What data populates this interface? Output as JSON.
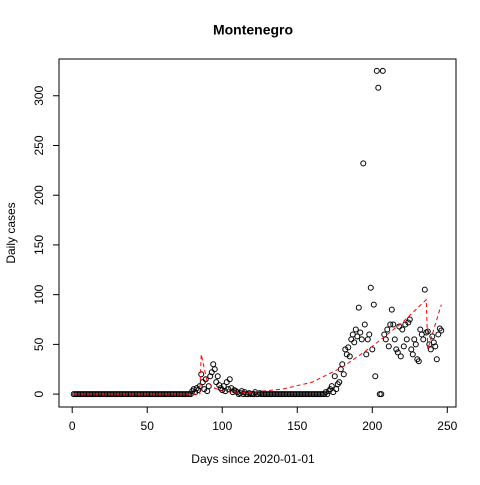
{
  "chart_data": {
    "type": "scatter",
    "title": "Montenegro",
    "x_label": "Days since 2020-01-01",
    "y_label": "Daily cases",
    "xlim": [
      -8.8,
      255.8
    ],
    "ylim": [
      -12.96,
      336.96
    ],
    "xticks": [
      0,
      50,
      100,
      150,
      200,
      250
    ],
    "yticks": [
      0,
      50,
      100,
      150,
      200,
      250,
      300
    ],
    "series": [
      {
        "type": "scatter",
        "color": "#000000",
        "x": [
          1,
          2,
          3,
          4,
          5,
          6,
          7,
          8,
          9,
          10,
          11,
          12,
          13,
          14,
          15,
          16,
          17,
          18,
          19,
          20,
          21,
          22,
          23,
          24,
          25,
          26,
          27,
          28,
          29,
          30,
          31,
          32,
          33,
          34,
          35,
          36,
          37,
          38,
          39,
          40,
          41,
          42,
          43,
          44,
          45,
          46,
          47,
          48,
          49,
          50,
          51,
          52,
          53,
          54,
          55,
          56,
          57,
          58,
          59,
          60,
          61,
          62,
          63,
          64,
          65,
          66,
          67,
          68,
          69,
          70,
          71,
          72,
          73,
          74,
          75,
          76,
          77,
          78,
          79,
          80,
          81,
          82,
          83,
          84,
          85,
          86,
          87,
          88,
          89,
          90,
          91,
          92,
          93,
          94,
          95,
          96,
          97,
          98,
          99,
          100,
          101,
          102,
          103,
          104,
          105,
          106,
          107,
          108,
          109,
          110,
          111,
          112,
          113,
          114,
          115,
          116,
          117,
          118,
          119,
          120,
          121,
          122,
          123,
          124,
          125,
          126,
          127,
          128,
          129,
          130,
          131,
          132,
          133,
          134,
          135,
          136,
          137,
          138,
          139,
          140,
          141,
          142,
          143,
          144,
          145,
          146,
          147,
          148,
          149,
          150,
          151,
          152,
          153,
          154,
          155,
          156,
          157,
          158,
          159,
          160,
          161,
          162,
          163,
          164,
          165,
          166,
          167,
          168,
          169,
          170,
          171,
          172,
          173,
          174,
          175,
          176,
          177,
          178,
          179,
          180,
          181,
          182,
          183,
          184,
          185,
          186,
          187,
          188,
          189,
          190,
          191,
          192,
          193,
          194,
          195,
          196,
          197,
          198,
          199,
          200,
          201,
          202,
          203,
          204,
          205,
          206,
          207,
          208,
          209,
          210,
          211,
          212,
          213,
          214,
          215,
          216,
          217,
          218,
          219,
          220,
          221,
          222,
          223,
          224,
          225,
          226,
          227,
          228,
          229,
          230,
          231,
          232,
          233,
          234,
          235,
          236,
          237,
          238,
          239,
          240,
          241,
          242,
          243,
          244,
          245,
          246
        ],
        "values": [
          0,
          0,
          0,
          0,
          0,
          0,
          0,
          0,
          0,
          0,
          0,
          0,
          0,
          0,
          0,
          0,
          0,
          0,
          0,
          0,
          0,
          0,
          0,
          0,
          0,
          0,
          0,
          0,
          0,
          0,
          0,
          0,
          0,
          0,
          0,
          0,
          0,
          0,
          0,
          0,
          0,
          0,
          0,
          0,
          0,
          0,
          0,
          0,
          0,
          0,
          0,
          0,
          0,
          0,
          0,
          0,
          0,
          0,
          0,
          0,
          0,
          0,
          0,
          0,
          0,
          0,
          0,
          0,
          0,
          0,
          0,
          0,
          0,
          0,
          0,
          0,
          0,
          0,
          0,
          3,
          5,
          2,
          6,
          4,
          8,
          20,
          12,
          5,
          15,
          3,
          8,
          18,
          22,
          30,
          25,
          12,
          18,
          9,
          6,
          4,
          8,
          3,
          12,
          5,
          15,
          6,
          2,
          4,
          3,
          2,
          0,
          1,
          3,
          0,
          2,
          0,
          0,
          1,
          0,
          0,
          0,
          2,
          0,
          0,
          1,
          0,
          0,
          0,
          0,
          0,
          0,
          0,
          0,
          0,
          0,
          0,
          0,
          0,
          0,
          0,
          0,
          0,
          0,
          0,
          0,
          0,
          0,
          0,
          0,
          0,
          0,
          0,
          0,
          0,
          0,
          0,
          0,
          0,
          0,
          0,
          0,
          0,
          0,
          0,
          0,
          0,
          0,
          0,
          2,
          0,
          3,
          5,
          8,
          2,
          18,
          5,
          10,
          12,
          25,
          30,
          20,
          45,
          40,
          47,
          38,
          55,
          60,
          52,
          65,
          58,
          87,
          62,
          55,
          232,
          70,
          40,
          55,
          60,
          107,
          45,
          90,
          18,
          325,
          308,
          0,
          0,
          325,
          60,
          55,
          65,
          48,
          70,
          85,
          70,
          55,
          45,
          42,
          68,
          38,
          65,
          48,
          70,
          55,
          72,
          75,
          45,
          40,
          55,
          50,
          35,
          33,
          65,
          60,
          55,
          105,
          62,
          63,
          50,
          45,
          58,
          52,
          48,
          35,
          60,
          66,
          64
        ]
      },
      {
        "type": "line",
        "color": "#ff0000",
        "dashed": true,
        "x": [
          1,
          85,
          86,
          90,
          95,
          100,
          110,
          120,
          140,
          160,
          180,
          200,
          220,
          236,
          237,
          246
        ],
        "values": [
          0,
          0,
          40,
          12,
          6,
          3,
          1,
          2,
          5,
          12,
          27,
          48,
          72,
          95,
          45,
          90
        ]
      }
    ]
  }
}
